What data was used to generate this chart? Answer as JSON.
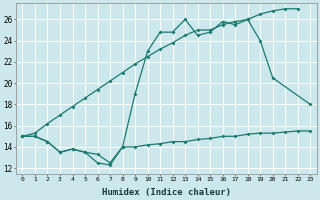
{
  "xlabel": "Humidex (Indice chaleur)",
  "xlim": [
    -0.5,
    23.5
  ],
  "ylim": [
    11.5,
    27.5
  ],
  "xticks": [
    0,
    1,
    2,
    3,
    4,
    5,
    6,
    7,
    8,
    9,
    10,
    11,
    12,
    13,
    14,
    15,
    16,
    17,
    18,
    19,
    20,
    21,
    22,
    23
  ],
  "yticks": [
    12,
    14,
    16,
    18,
    20,
    22,
    24,
    26
  ],
  "bg_color": "#cce8ec",
  "grid_color": "#ffffff",
  "line_color": "#1a7a6e",
  "line1_x": [
    0,
    1,
    2,
    3,
    4,
    5,
    6,
    7,
    8,
    9,
    10,
    11,
    12,
    13,
    14,
    15,
    16,
    17,
    18,
    19,
    20,
    21,
    22
  ],
  "line1_y": [
    15.0,
    15.3,
    16.2,
    17.0,
    17.8,
    18.6,
    19.4,
    20.2,
    21.0,
    21.8,
    22.5,
    23.2,
    23.8,
    24.5,
    25.0,
    25.0,
    25.5,
    25.8,
    26.0,
    26.5,
    26.8,
    27.0,
    27.0
  ],
  "line2_x": [
    0,
    1,
    2,
    3,
    4,
    5,
    6,
    7,
    8,
    9,
    10,
    11,
    12,
    13,
    14,
    15,
    16,
    17,
    18,
    19,
    20,
    23
  ],
  "line2_y": [
    15.0,
    15.0,
    14.5,
    13.5,
    13.8,
    13.5,
    12.5,
    12.3,
    14.0,
    19.0,
    23.0,
    24.8,
    24.8,
    26.0,
    24.5,
    24.8,
    25.8,
    25.5,
    26.0,
    24.0,
    20.5,
    18.0
  ],
  "line3_x": [
    0,
    1,
    2,
    3,
    4,
    5,
    6,
    7,
    8,
    9,
    10,
    11,
    12,
    13,
    14,
    15,
    16,
    17,
    18,
    19,
    20,
    21,
    22,
    23
  ],
  "line3_y": [
    15.0,
    15.0,
    14.5,
    13.5,
    13.8,
    13.5,
    13.3,
    12.5,
    14.0,
    14.0,
    14.2,
    14.3,
    14.5,
    14.5,
    14.7,
    14.8,
    15.0,
    15.0,
    15.2,
    15.3,
    15.3,
    15.4,
    15.5,
    15.5
  ]
}
